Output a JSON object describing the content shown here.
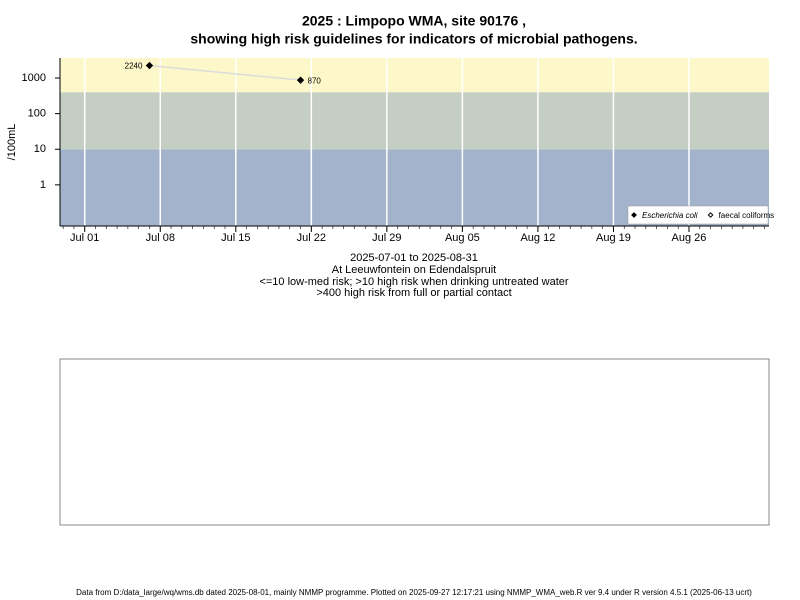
{
  "chart_data": {
    "type": "line",
    "title": [
      "2025 : Limpopo WMA, site 90176 ,",
      "showing high risk guidelines for indicators of microbial pathogens."
    ],
    "y_label": "/100mL",
    "x": [
      "2025-07-07",
      "2025-07-21"
    ],
    "series": [
      {
        "name": "Escherichia coli",
        "color": "#000000",
        "marker": "filled",
        "line_color": "#dcdcdc",
        "values": [
          2240,
          870
        ]
      },
      {
        "name": "faecal coliforms",
        "color": "#000000",
        "marker": "open",
        "values": [
          null,
          null
        ]
      }
    ],
    "log_y": true,
    "ylim": [
      0.07,
      3650
    ],
    "yticks": [
      1,
      10,
      100,
      1000
    ],
    "xlim": [
      "2025-06-28T17:00",
      "2025-09-02T10:00"
    ],
    "xticks": [
      {
        "value": "2025-07-01",
        "label": "Jul 01"
      },
      {
        "value": "2025-07-08",
        "label": "Jul 08"
      },
      {
        "value": "2025-07-15",
        "label": "Jul 15"
      },
      {
        "value": "2025-07-22",
        "label": "Jul 22"
      },
      {
        "value": "2025-07-29",
        "label": "Jul 29"
      },
      {
        "value": "2025-08-05",
        "label": "Aug 05"
      },
      {
        "value": "2025-08-12",
        "label": "Aug 12"
      },
      {
        "value": "2025-08-19",
        "label": "Aug 19"
      },
      {
        "value": "2025-08-26",
        "label": "Aug 26"
      }
    ],
    "grid": true,
    "bands": [
      {
        "from": 0.07,
        "to": 10,
        "color": "#a3b3cc"
      },
      {
        "from": 10,
        "to": 400,
        "color": "#c5cec2"
      },
      {
        "from": 400,
        "to": 3650,
        "color": "#fdf8c9"
      }
    ],
    "legend": "bottom-right",
    "notes": [
      "2025-07-01 to 2025-08-31",
      "At Leeuwfontein on Edendalspruit",
      "<=10 low-med risk; >10 high risk when drinking untreated water",
      ">400 high risk from full or partial contact"
    ]
  },
  "footer": "Data from D:/data_large/wq/wms.db dated 2025-08-01, mainly NMMP programme. Plotted on 2025-09-27 12:17:21 using NMMP_WMA_web.R ver 9.4 under R version 4.5.1 (2025-06-13 ucrt)"
}
